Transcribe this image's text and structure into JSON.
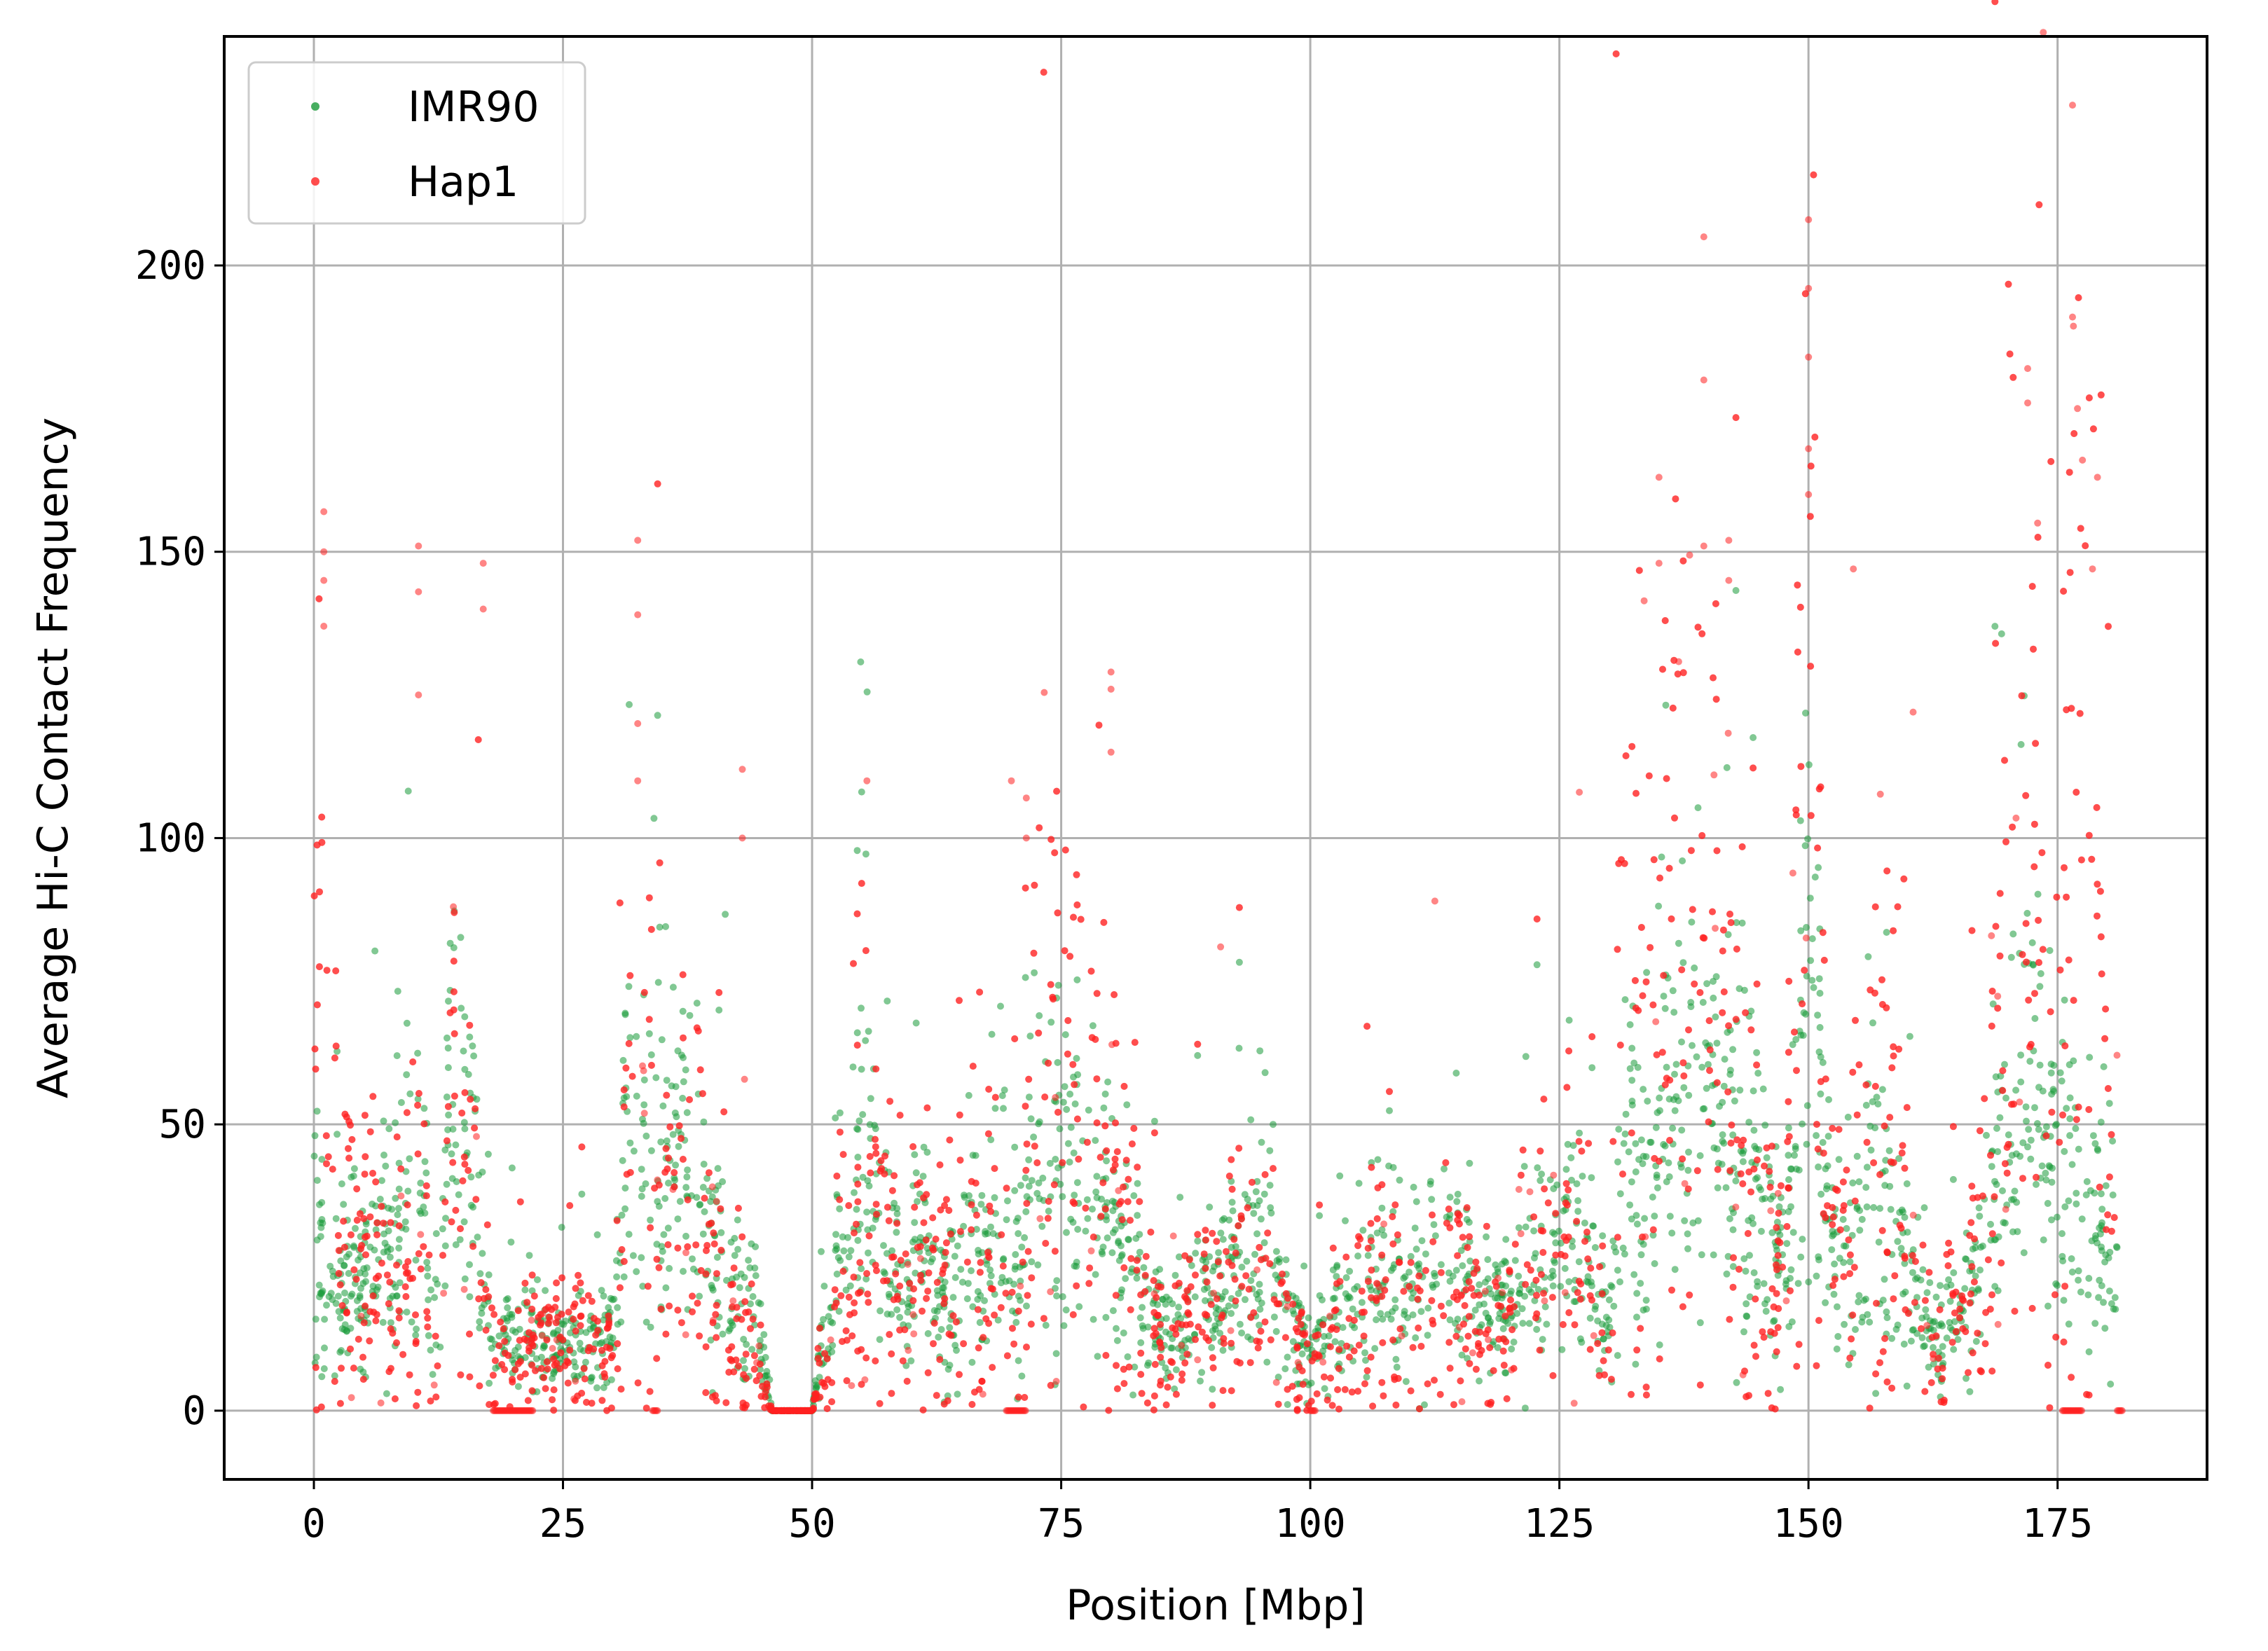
{
  "chart_data": {
    "type": "scatter",
    "title": "",
    "xlabel": "Position [Mbp]",
    "ylabel": "Average Hi-C Contact Frequency",
    "xlim": [
      -9,
      190
    ],
    "ylim": [
      -12,
      240
    ],
    "xticks": [
      0,
      25,
      50,
      75,
      100,
      125,
      150,
      175
    ],
    "yticks": [
      0,
      50,
      100,
      150,
      200
    ],
    "grid": true,
    "legend_position": "top-left",
    "series": [
      {
        "name": "IMR90",
        "color": "#1a9a3a",
        "profile": [
          [
            0,
            38
          ],
          [
            1,
            20
          ],
          [
            2,
            25
          ],
          [
            3,
            20
          ],
          [
            5,
            22
          ],
          [
            7,
            30
          ],
          [
            8,
            25
          ],
          [
            10,
            45
          ],
          [
            11,
            35
          ],
          [
            12,
            20
          ],
          [
            14,
            55
          ],
          [
            16,
            40
          ],
          [
            17,
            25
          ],
          [
            18,
            14
          ],
          [
            20,
            13
          ],
          [
            22,
            12
          ],
          [
            25,
            12
          ],
          [
            28,
            12
          ],
          [
            30,
            14
          ],
          [
            31,
            40
          ],
          [
            33,
            45
          ],
          [
            35,
            38
          ],
          [
            37,
            40
          ],
          [
            39,
            30
          ],
          [
            41,
            25
          ],
          [
            43,
            20
          ],
          [
            45,
            12
          ],
          [
            46,
            0
          ],
          [
            50,
            0
          ],
          [
            51,
            12
          ],
          [
            53,
            25
          ],
          [
            55,
            45
          ],
          [
            57,
            35
          ],
          [
            59,
            20
          ],
          [
            61,
            28
          ],
          [
            63,
            18
          ],
          [
            65,
            30
          ],
          [
            67,
            25
          ],
          [
            69,
            30
          ],
          [
            70,
            25
          ],
          [
            71,
            30
          ],
          [
            73,
            45
          ],
          [
            75,
            40
          ],
          [
            78,
            38
          ],
          [
            80,
            30
          ],
          [
            82,
            25
          ],
          [
            84,
            18
          ],
          [
            86,
            12
          ],
          [
            88,
            18
          ],
          [
            90,
            20
          ],
          [
            93,
            25
          ],
          [
            96,
            30
          ],
          [
            98,
            15
          ],
          [
            100,
            10
          ],
          [
            102,
            13
          ],
          [
            105,
            18
          ],
          [
            108,
            22
          ],
          [
            111,
            26
          ],
          [
            113,
            28
          ],
          [
            116,
            22
          ],
          [
            119,
            18
          ],
          [
            121,
            20
          ],
          [
            124,
            30
          ],
          [
            127,
            32
          ],
          [
            129,
            18
          ],
          [
            130,
            14
          ],
          [
            131,
            40
          ],
          [
            134,
            50
          ],
          [
            137,
            48
          ],
          [
            140,
            52
          ],
          [
            142,
            55
          ],
          [
            144,
            45
          ],
          [
            146,
            30
          ],
          [
            148,
            28
          ],
          [
            149,
            55
          ],
          [
            150,
            70
          ],
          [
            151,
            50
          ],
          [
            153,
            25
          ],
          [
            155,
            30
          ],
          [
            157,
            40
          ],
          [
            159,
            35
          ],
          [
            160,
            30
          ],
          [
            161,
            15
          ],
          [
            163,
            12
          ],
          [
            165,
            15
          ],
          [
            167,
            25
          ],
          [
            169,
            40
          ],
          [
            171,
            50
          ],
          [
            173,
            60
          ],
          [
            175,
            45
          ],
          [
            177,
            35
          ],
          [
            179,
            30
          ],
          [
            181,
            28
          ]
        ],
        "spread": 0.35
      },
      {
        "name": "Hap1",
        "color": "#ff2020",
        "profile": [
          [
            0,
            45
          ],
          [
            1,
            60
          ],
          [
            2,
            40
          ],
          [
            3,
            35
          ],
          [
            5,
            28
          ],
          [
            7,
            25
          ],
          [
            8,
            20
          ],
          [
            10,
            30
          ],
          [
            11,
            28
          ],
          [
            12,
            10
          ],
          [
            14,
            45
          ],
          [
            16,
            35
          ],
          [
            17,
            20
          ],
          [
            18,
            12
          ],
          [
            20,
            10
          ],
          [
            22,
            11
          ],
          [
            25,
            12
          ],
          [
            28,
            12
          ],
          [
            30,
            12
          ],
          [
            31,
            35
          ],
          [
            33,
            50
          ],
          [
            35,
            45
          ],
          [
            37,
            35
          ],
          [
            39,
            30
          ],
          [
            41,
            20
          ],
          [
            43,
            15
          ],
          [
            45,
            8
          ],
          [
            46,
            0
          ],
          [
            50,
            0
          ],
          [
            51,
            10
          ],
          [
            53,
            22
          ],
          [
            55,
            35
          ],
          [
            57,
            30
          ],
          [
            59,
            22
          ],
          [
            61,
            25
          ],
          [
            63,
            20
          ],
          [
            65,
            28
          ],
          [
            67,
            25
          ],
          [
            69,
            30
          ],
          [
            70,
            28
          ],
          [
            71,
            35
          ],
          [
            73,
            55
          ],
          [
            75,
            48
          ],
          [
            78,
            50
          ],
          [
            80,
            40
          ],
          [
            82,
            28
          ],
          [
            84,
            15
          ],
          [
            86,
            10
          ],
          [
            88,
            15
          ],
          [
            90,
            18
          ],
          [
            93,
            22
          ],
          [
            96,
            20
          ],
          [
            98,
            12
          ],
          [
            100,
            8
          ],
          [
            102,
            12
          ],
          [
            105,
            16
          ],
          [
            108,
            20
          ],
          [
            111,
            24
          ],
          [
            113,
            22
          ],
          [
            116,
            20
          ],
          [
            119,
            15
          ],
          [
            121,
            20
          ],
          [
            124,
            28
          ],
          [
            127,
            32
          ],
          [
            129,
            15
          ],
          [
            130,
            12
          ],
          [
            131,
            70
          ],
          [
            134,
            90
          ],
          [
            137,
            75
          ],
          [
            140,
            80
          ],
          [
            142,
            65
          ],
          [
            144,
            35
          ],
          [
            146,
            25
          ],
          [
            148,
            28
          ],
          [
            149,
            90
          ],
          [
            150,
            110
          ],
          [
            151,
            60
          ],
          [
            153,
            28
          ],
          [
            155,
            40
          ],
          [
            157,
            50
          ],
          [
            159,
            45
          ],
          [
            160,
            35
          ],
          [
            161,
            14
          ],
          [
            163,
            12
          ],
          [
            165,
            16
          ],
          [
            167,
            30
          ],
          [
            169,
            60
          ],
          [
            171,
            90
          ],
          [
            173,
            85
          ],
          [
            175,
            70
          ],
          [
            177,
            100
          ],
          [
            179,
            90
          ],
          [
            181,
            60
          ]
        ],
        "spread": 0.55,
        "outliers": [
          [
            1,
            157
          ],
          [
            1,
            150
          ],
          [
            1,
            145
          ],
          [
            1,
            137
          ],
          [
            10.5,
            151
          ],
          [
            10.5,
            143
          ],
          [
            10.5,
            125
          ],
          [
            14,
            88
          ],
          [
            17,
            148
          ],
          [
            17,
            140
          ],
          [
            32.5,
            152
          ],
          [
            32.5,
            139
          ],
          [
            32.5,
            120
          ],
          [
            32.5,
            110
          ],
          [
            43,
            112
          ],
          [
            43,
            100
          ],
          [
            55.5,
            110
          ],
          [
            70,
            110
          ],
          [
            71.5,
            107
          ],
          [
            71.5,
            100
          ],
          [
            80,
            129
          ],
          [
            80,
            126
          ],
          [
            80,
            115
          ],
          [
            91,
            81
          ],
          [
            112.5,
            89
          ],
          [
            127,
            108
          ],
          [
            135,
            163
          ],
          [
            135,
            148
          ],
          [
            139.5,
            205
          ],
          [
            139.5,
            180
          ],
          [
            139.5,
            151
          ],
          [
            142,
            152
          ],
          [
            142,
            145
          ],
          [
            150,
            208
          ],
          [
            150,
            196
          ],
          [
            150,
            184
          ],
          [
            150,
            168
          ],
          [
            150,
            160
          ],
          [
            154.5,
            147
          ],
          [
            160.5,
            122
          ],
          [
            172,
            182
          ],
          [
            172,
            176
          ],
          [
            173,
            155
          ],
          [
            176.5,
            228
          ],
          [
            176.5,
            191
          ],
          [
            177,
            175
          ],
          [
            177.5,
            166
          ],
          [
            179,
            163
          ],
          [
            178.5,
            147
          ]
        ],
        "zero_runs": [
          [
            18,
            22
          ],
          [
            34,
            34.5
          ],
          [
            46,
            50
          ],
          [
            69.5,
            71.5
          ],
          [
            100,
            100.5
          ],
          [
            175.5,
            177.5
          ],
          [
            181,
            181.5
          ]
        ]
      }
    ]
  }
}
